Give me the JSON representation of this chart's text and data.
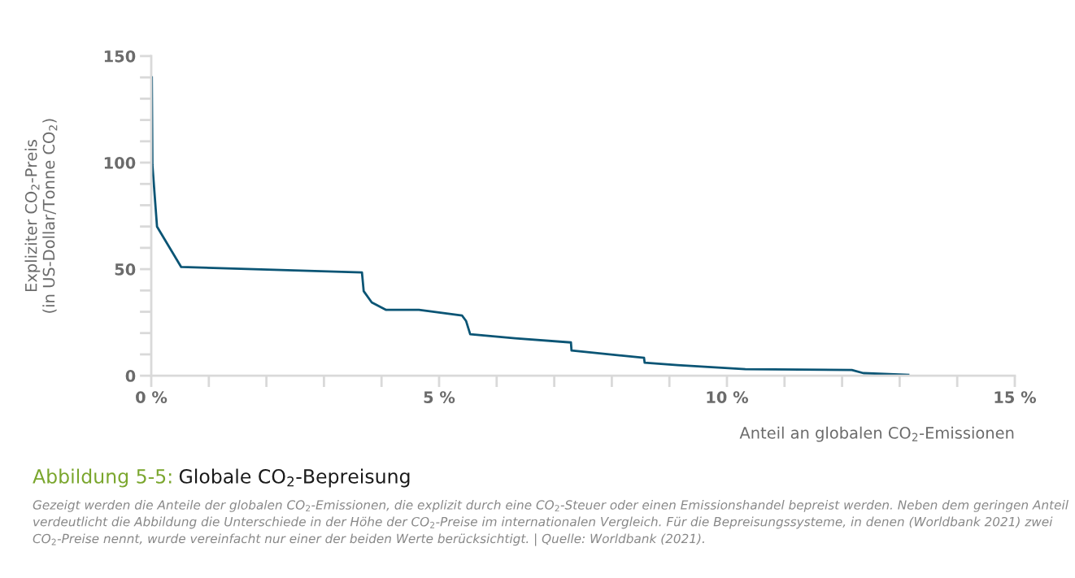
{
  "chart_data": {
    "type": "line",
    "title": "Abbildung 5-5: Globale CO$_{2}$-Bepreisung",
    "xlabel": "Anteil an globalen CO$_{2}$-Emissionen",
    "ylabel": "Expliziter CO$_{2}$-Preis\n(in US-Dollar/Tonne CO$_{2}$)",
    "annotations": [
      "Gezeigt werden die Anteile der globalen CO$_{2}$-Emissionen, die explizit durch eine CO$_{2}$-Steuer oder einen Emissionshandel bepreist werden. Neben dem geringen Anteil verdeutlicht die Abbildung die Unterschiede in der Höhe der CO$_{2}$-Preise im internationalen Vergleich. Für die Bepreisungssysteme, in denen (Worldbank 2021) zwei CO$_{2}$-Preise nennt, wurde vereinfacht nur einer der beiden Werte berücksichtigt. | Quelle: Worldbank (2021)."
    ],
    "series": [
      {
        "color": "#0b5575",
        "x": [
          0.01,
          0.02,
          0.1,
          0.52,
          3.66,
          3.69,
          3.83,
          4.08,
          4.65,
          5.4,
          5.47,
          5.54,
          6.32,
          7.29,
          7.3,
          8.56,
          8.57,
          9.14,
          10.32,
          12.17,
          12.37,
          13.15
        ],
        "values": [
          140,
          99,
          70,
          51,
          48.5,
          39.7,
          34.4,
          30.9,
          30.9,
          28.2,
          25.6,
          19.5,
          17.6,
          15.6,
          11.8,
          8.4,
          6.1,
          5.0,
          3.1,
          2.7,
          1.2,
          0.4
        ]
      }
    ],
    "xlim": [
      0,
      15
    ],
    "ylim": [
      0,
      150
    ],
    "xticks": [
      {
        "value": 0,
        "label": "0 %"
      },
      {
        "value": 1,
        "label": null
      },
      {
        "value": 2,
        "label": null
      },
      {
        "value": 3,
        "label": null
      },
      {
        "value": 4,
        "label": null
      },
      {
        "value": 5,
        "label": "5 %"
      },
      {
        "value": 6,
        "label": null
      },
      {
        "value": 7,
        "label": null
      },
      {
        "value": 8,
        "label": null
      },
      {
        "value": 9,
        "label": null
      },
      {
        "value": 10,
        "label": "10 %"
      },
      {
        "value": 11,
        "label": null
      },
      {
        "value": 12,
        "label": null
      },
      {
        "value": 13,
        "label": null
      },
      {
        "value": 14,
        "label": null
      },
      {
        "value": 15,
        "label": "15 %"
      }
    ],
    "yticks": [
      0,
      {
        "value": 10,
        "label": null
      },
      {
        "value": 20,
        "label": null
      },
      {
        "value": 30,
        "label": null
      },
      {
        "value": 40,
        "label": null
      },
      50,
      {
        "value": 60,
        "label": null
      },
      {
        "value": 70,
        "label": null
      },
      {
        "value": 80,
        "label": null
      },
      {
        "value": 90,
        "label": null
      },
      100,
      {
        "value": 110,
        "label": null
      },
      {
        "value": 120,
        "label": null
      },
      {
        "value": 130,
        "label": null
      },
      {
        "value": 140,
        "label": null
      },
      150
    ],
    "grid": false,
    "legend": false,
    "marker": "none",
    "line_style": "solid"
  }
}
